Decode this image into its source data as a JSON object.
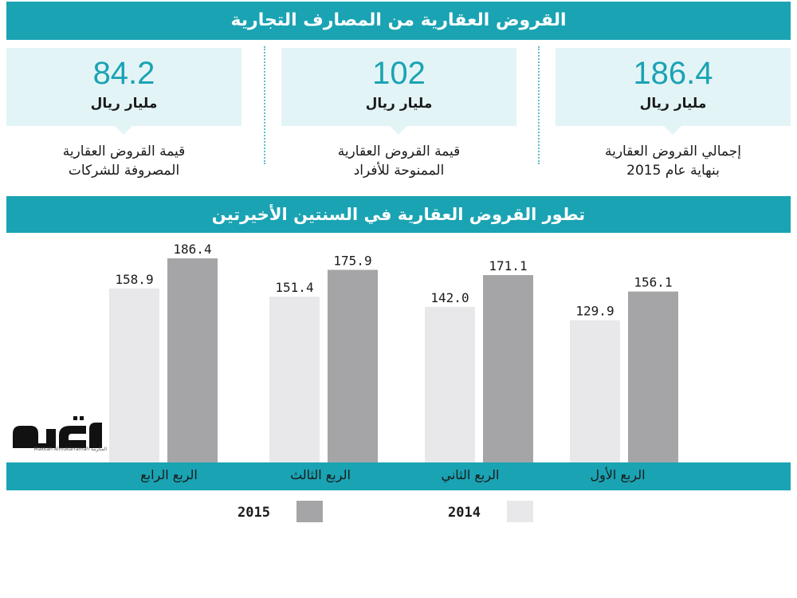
{
  "title": "القروض العقارية من المصارف التجارية",
  "stats": [
    {
      "value": "186.4",
      "unit": "مليار ريال",
      "caption_line1": "إجمالي القروض العقارية",
      "caption_line2": "بنهاية عام 2015"
    },
    {
      "value": "102",
      "unit": "مليار ريال",
      "caption_line1": "قيمة القروض العقارية",
      "caption_line2": "الممنوحة للأفراد"
    },
    {
      "value": "84.2",
      "unit": "مليار ريال",
      "caption_line1": "قيمة القروض العقارية",
      "caption_line2": "المصروفة للشركات"
    }
  ],
  "chart_title": "تطور القروض العقارية في السنتين الأخيرتين",
  "logo": {
    "name": "مكة",
    "caption": "المكرمة Makkah Almukarramah"
  },
  "colors": {
    "accent": "#1aa3b3",
    "light_panel": "#e3f4f7",
    "series_2014": "#e8e8ea",
    "series_2015": "#a5a5a8"
  },
  "chart_data": {
    "type": "bar",
    "categories": [
      "الربع الأول",
      "الربع الثاني",
      "الربع الثالث",
      "الربع الرابع"
    ],
    "series": [
      {
        "name": "2014",
        "values": [
          129.9,
          142.0,
          151.4,
          158.9
        ],
        "labels": [
          "129.9",
          "142.0",
          "151.4",
          "158.9"
        ]
      },
      {
        "name": "2015",
        "values": [
          156.1,
          171.1,
          175.9,
          186.4
        ],
        "labels": [
          "156.1",
          "171.1",
          "175.9",
          "186.4"
        ]
      }
    ],
    "direction": "rtl",
    "legend": [
      "2015",
      "2014"
    ],
    "title": "تطور القروض العقارية في السنتين الأخيرتين",
    "xlabel": "",
    "ylabel": "",
    "grid": false
  }
}
